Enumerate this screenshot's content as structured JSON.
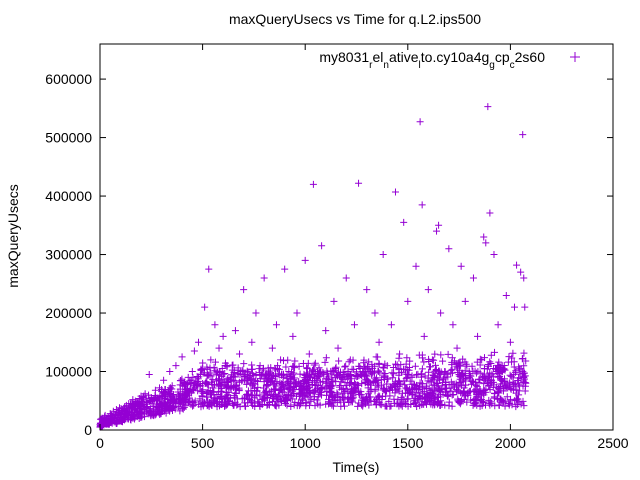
{
  "chart_data": {
    "type": "scatter",
    "title": "maxQueryUsecs vs Time for q.L2.ips500",
    "xlabel": "Time(s)",
    "ylabel": "maxQueryUsecs",
    "xlim": [
      0,
      2500
    ],
    "ylim": [
      0,
      660000
    ],
    "x_ticks": [
      "0",
      "500",
      "1000",
      "1500",
      "2000",
      "2500"
    ],
    "y_ticks": [
      "0",
      "100000",
      "200000",
      "300000",
      "400000",
      "500000",
      "600000"
    ],
    "grid": false,
    "legend": {
      "position": "top-right",
      "marker": "+"
    },
    "series": [
      {
        "name": "my8031_rel_native_lto.cy10a4g_gcp_c2s60",
        "name_parts": [
          {
            "text": "my8031",
            "sub": false
          },
          {
            "text": "r",
            "sub": true
          },
          {
            "text": "el",
            "sub": false
          },
          {
            "text": "n",
            "sub": true
          },
          {
            "text": "ative",
            "sub": false
          },
          {
            "text": "l",
            "sub": true
          },
          {
            "text": "to.cy10a4g",
            "sub": false
          },
          {
            "text": "g",
            "sub": true
          },
          {
            "text": "cp",
            "sub": false
          },
          {
            "text": "c",
            "sub": true
          },
          {
            "text": "2s60",
            "sub": false
          }
        ],
        "color": "#9400d3",
        "marker": "+",
        "points": [
          [
            0,
            5000
          ],
          [
            5,
            12000
          ],
          [
            10,
            20000
          ],
          [
            15,
            9000
          ],
          [
            20,
            15000
          ],
          [
            25,
            25000
          ],
          [
            30,
            11000
          ],
          [
            35,
            18000
          ],
          [
            40,
            22000
          ],
          [
            45,
            14000
          ],
          [
            50,
            28000
          ],
          [
            55,
            17000
          ],
          [
            60,
            24000
          ],
          [
            65,
            32000
          ],
          [
            70,
            20000
          ],
          [
            75,
            26000
          ],
          [
            80,
            35000
          ],
          [
            85,
            22000
          ],
          [
            90,
            30000
          ],
          [
            95,
            38000
          ],
          [
            100,
            25000
          ],
          [
            110,
            33000
          ],
          [
            120,
            40000
          ],
          [
            130,
            28000
          ],
          [
            140,
            45000
          ],
          [
            150,
            36000
          ],
          [
            160,
            52000
          ],
          [
            170,
            30000
          ],
          [
            180,
            48000
          ],
          [
            190,
            42000
          ],
          [
            200,
            58000
          ],
          [
            210,
            35000
          ],
          [
            220,
            62000
          ],
          [
            230,
            47000
          ],
          [
            240,
            95000
          ],
          [
            250,
            55000
          ],
          [
            260,
            40000
          ],
          [
            270,
            68000
          ],
          [
            280,
            50000
          ],
          [
            290,
            72000
          ],
          [
            300,
            45000
          ],
          [
            310,
            85000
          ],
          [
            320,
            60000
          ],
          [
            330,
            52000
          ],
          [
            340,
            100000
          ],
          [
            350,
            70000
          ],
          [
            360,
            48000
          ],
          [
            370,
            110000
          ],
          [
            380,
            65000
          ],
          [
            390,
            55000
          ],
          [
            400,
            125000
          ],
          [
            410,
            80000
          ],
          [
            420,
            60000
          ],
          [
            430,
            90000
          ],
          [
            440,
            70000
          ],
          [
            450,
            100000
          ],
          [
            460,
            135000
          ],
          [
            470,
            75000
          ],
          [
            480,
            150000
          ],
          [
            490,
            95000
          ],
          [
            500,
            105000
          ],
          [
            510,
            210000
          ],
          [
            520,
            80000
          ],
          [
            530,
            275000
          ],
          [
            540,
            120000
          ],
          [
            550,
            65000
          ],
          [
            560,
            180000
          ],
          [
            570,
            100000
          ],
          [
            580,
            140000
          ],
          [
            590,
            75000
          ],
          [
            600,
            160000
          ],
          [
            620,
            110000
          ],
          [
            640,
            90000
          ],
          [
            660,
            170000
          ],
          [
            680,
            130000
          ],
          [
            700,
            240000
          ],
          [
            720,
            85000
          ],
          [
            740,
            150000
          ],
          [
            760,
            200000
          ],
          [
            780,
            110000
          ],
          [
            800,
            260000
          ],
          [
            820,
            95000
          ],
          [
            840,
            140000
          ],
          [
            860,
            180000
          ],
          [
            880,
            120000
          ],
          [
            900,
            275000
          ],
          [
            920,
            100000
          ],
          [
            940,
            160000
          ],
          [
            960,
            200000
          ],
          [
            980,
            80000
          ],
          [
            1000,
            290000
          ],
          [
            1010,
            60000
          ],
          [
            1020,
            130000
          ],
          [
            1040,
            420000
          ],
          [
            1060,
            100000
          ],
          [
            1080,
            315000
          ],
          [
            1100,
            170000
          ],
          [
            1120,
            75000
          ],
          [
            1140,
            220000
          ],
          [
            1160,
            140000
          ],
          [
            1180,
            90000
          ],
          [
            1200,
            260000
          ],
          [
            1220,
            120000
          ],
          [
            1240,
            180000
          ],
          [
            1260,
            422000
          ],
          [
            1280,
            100000
          ],
          [
            1300,
            240000
          ],
          [
            1320,
            80000
          ],
          [
            1340,
            200000
          ],
          [
            1360,
            150000
          ],
          [
            1380,
            300000
          ],
          [
            1400,
            110000
          ],
          [
            1420,
            180000
          ],
          [
            1440,
            407000
          ],
          [
            1460,
            130000
          ],
          [
            1480,
            355000
          ],
          [
            1500,
            220000
          ],
          [
            1520,
            90000
          ],
          [
            1540,
            280000
          ],
          [
            1560,
            527000
          ],
          [
            1570,
            385000
          ],
          [
            1580,
            160000
          ],
          [
            1600,
            240000
          ],
          [
            1620,
            120000
          ],
          [
            1640,
            340000
          ],
          [
            1650,
            350000
          ],
          [
            1660,
            200000
          ],
          [
            1680,
            100000
          ],
          [
            1700,
            310000
          ],
          [
            1720,
            180000
          ],
          [
            1740,
            140000
          ],
          [
            1760,
            280000
          ],
          [
            1780,
            220000
          ],
          [
            1800,
            90000
          ],
          [
            1820,
            260000
          ],
          [
            1840,
            160000
          ],
          [
            1860,
            120000
          ],
          [
            1870,
            330000
          ],
          [
            1880,
            320000
          ],
          [
            1890,
            553000
          ],
          [
            1900,
            371000
          ],
          [
            1920,
            300000
          ],
          [
            1940,
            180000
          ],
          [
            1960,
            110000
          ],
          [
            1980,
            230000
          ],
          [
            2000,
            150000
          ],
          [
            2020,
            210000
          ],
          [
            2030,
            282000
          ],
          [
            2040,
            60000
          ],
          [
            2050,
            270000
          ],
          [
            2060,
            505000
          ],
          [
            2065,
            260000
          ],
          [
            2070,
            210000
          ],
          [
            2075,
            80000
          ]
        ]
      }
    ],
    "cloud": {
      "description_free": true,
      "segments": [
        {
          "x0": 0,
          "x1": 200,
          "low0": 5000,
          "low1": 20000,
          "high0": 20000,
          "high1": 60000
        },
        {
          "x0": 200,
          "x1": 500,
          "low0": 20000,
          "low1": 40000,
          "high0": 60000,
          "high1": 110000
        },
        {
          "x0": 500,
          "x1": 2075,
          "low0": 40000,
          "low1": 40000,
          "high0": 120000,
          "high1": 140000
        }
      ]
    }
  }
}
